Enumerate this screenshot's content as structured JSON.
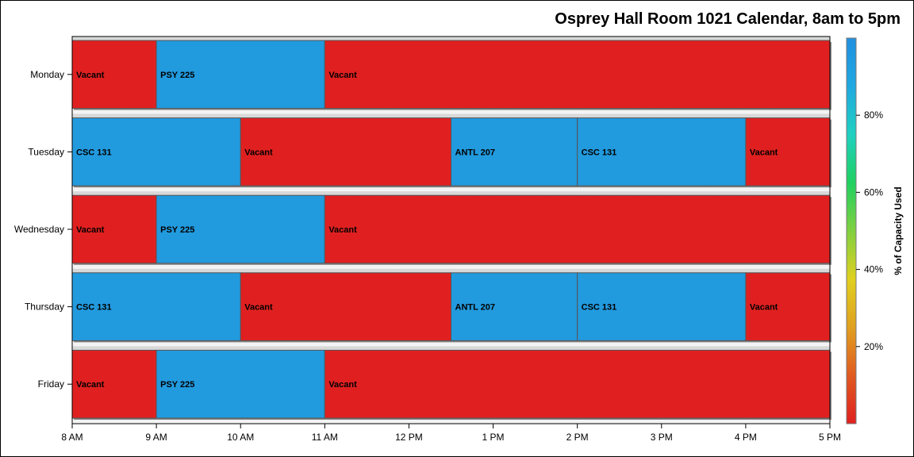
{
  "chart_data": {
    "type": "bar",
    "title": "Osprey Hall Room 1021 Calendar, 8am to 5pm",
    "x_ticks": [
      {
        "value": 8,
        "label": "8 AM"
      },
      {
        "value": 9,
        "label": "9 AM"
      },
      {
        "value": 10,
        "label": "10 AM"
      },
      {
        "value": 11,
        "label": "11 AM"
      },
      {
        "value": 12,
        "label": "12 PM"
      },
      {
        "value": 13,
        "label": "1 PM"
      },
      {
        "value": 14,
        "label": "2 PM"
      },
      {
        "value": 15,
        "label": "3 PM"
      },
      {
        "value": 16,
        "label": "4 PM"
      },
      {
        "value": 17,
        "label": "5 PM"
      }
    ],
    "xlim": [
      8,
      17
    ],
    "categories": [
      "Monday",
      "Tuesday",
      "Wednesday",
      "Thursday",
      "Friday"
    ],
    "rows": [
      {
        "day": "Monday",
        "segments": [
          {
            "label": "Vacant",
            "start": 8,
            "end": 9,
            "capacity": 0
          },
          {
            "label": "PSY 225",
            "start": 9,
            "end": 11,
            "capacity": 100
          },
          {
            "label": "Vacant",
            "start": 11,
            "end": 17,
            "capacity": 0
          }
        ]
      },
      {
        "day": "Tuesday",
        "segments": [
          {
            "label": "CSC 131",
            "start": 8,
            "end": 10,
            "capacity": 100
          },
          {
            "label": "Vacant",
            "start": 10,
            "end": 12.5,
            "capacity": 0
          },
          {
            "label": "ANTL 207",
            "start": 12.5,
            "end": 14,
            "capacity": 100
          },
          {
            "label": "CSC 131",
            "start": 14,
            "end": 16,
            "capacity": 100
          },
          {
            "label": "Vacant",
            "start": 16,
            "end": 17,
            "capacity": 0
          }
        ]
      },
      {
        "day": "Wednesday",
        "segments": [
          {
            "label": "Vacant",
            "start": 8,
            "end": 9,
            "capacity": 0
          },
          {
            "label": "PSY 225",
            "start": 9,
            "end": 11,
            "capacity": 100
          },
          {
            "label": "Vacant",
            "start": 11,
            "end": 17,
            "capacity": 0
          }
        ]
      },
      {
        "day": "Thursday",
        "segments": [
          {
            "label": "CSC 131",
            "start": 8,
            "end": 10,
            "capacity": 100
          },
          {
            "label": "Vacant",
            "start": 10,
            "end": 12.5,
            "capacity": 0
          },
          {
            "label": "ANTL 207",
            "start": 12.5,
            "end": 14,
            "capacity": 100
          },
          {
            "label": "CSC 131",
            "start": 14,
            "end": 16,
            "capacity": 100
          },
          {
            "label": "Vacant",
            "start": 16,
            "end": 17,
            "capacity": 0
          }
        ]
      },
      {
        "day": "Friday",
        "segments": [
          {
            "label": "Vacant",
            "start": 8,
            "end": 9,
            "capacity": 0
          },
          {
            "label": "PSY 225",
            "start": 9,
            "end": 11,
            "capacity": 100
          },
          {
            "label": "Vacant",
            "start": 11,
            "end": 17,
            "capacity": 0
          }
        ]
      }
    ],
    "colorbar": {
      "label": "% of Capacity Used",
      "ticks": [
        {
          "value": 20,
          "label": "20%"
        },
        {
          "value": 40,
          "label": "40%"
        },
        {
          "value": 60,
          "label": "60%"
        },
        {
          "value": 80,
          "label": "80%"
        }
      ],
      "range": [
        0,
        100
      ],
      "colors": [
        "#e02020",
        "#e05a20",
        "#e0a020",
        "#e0d020",
        "#80d040",
        "#20d060",
        "#20d0c0",
        "#20a8e0",
        "#2090e0"
      ]
    },
    "colors": {
      "vacant": "#e02020",
      "used": "#229ade"
    },
    "grid": false,
    "legend": "right"
  }
}
